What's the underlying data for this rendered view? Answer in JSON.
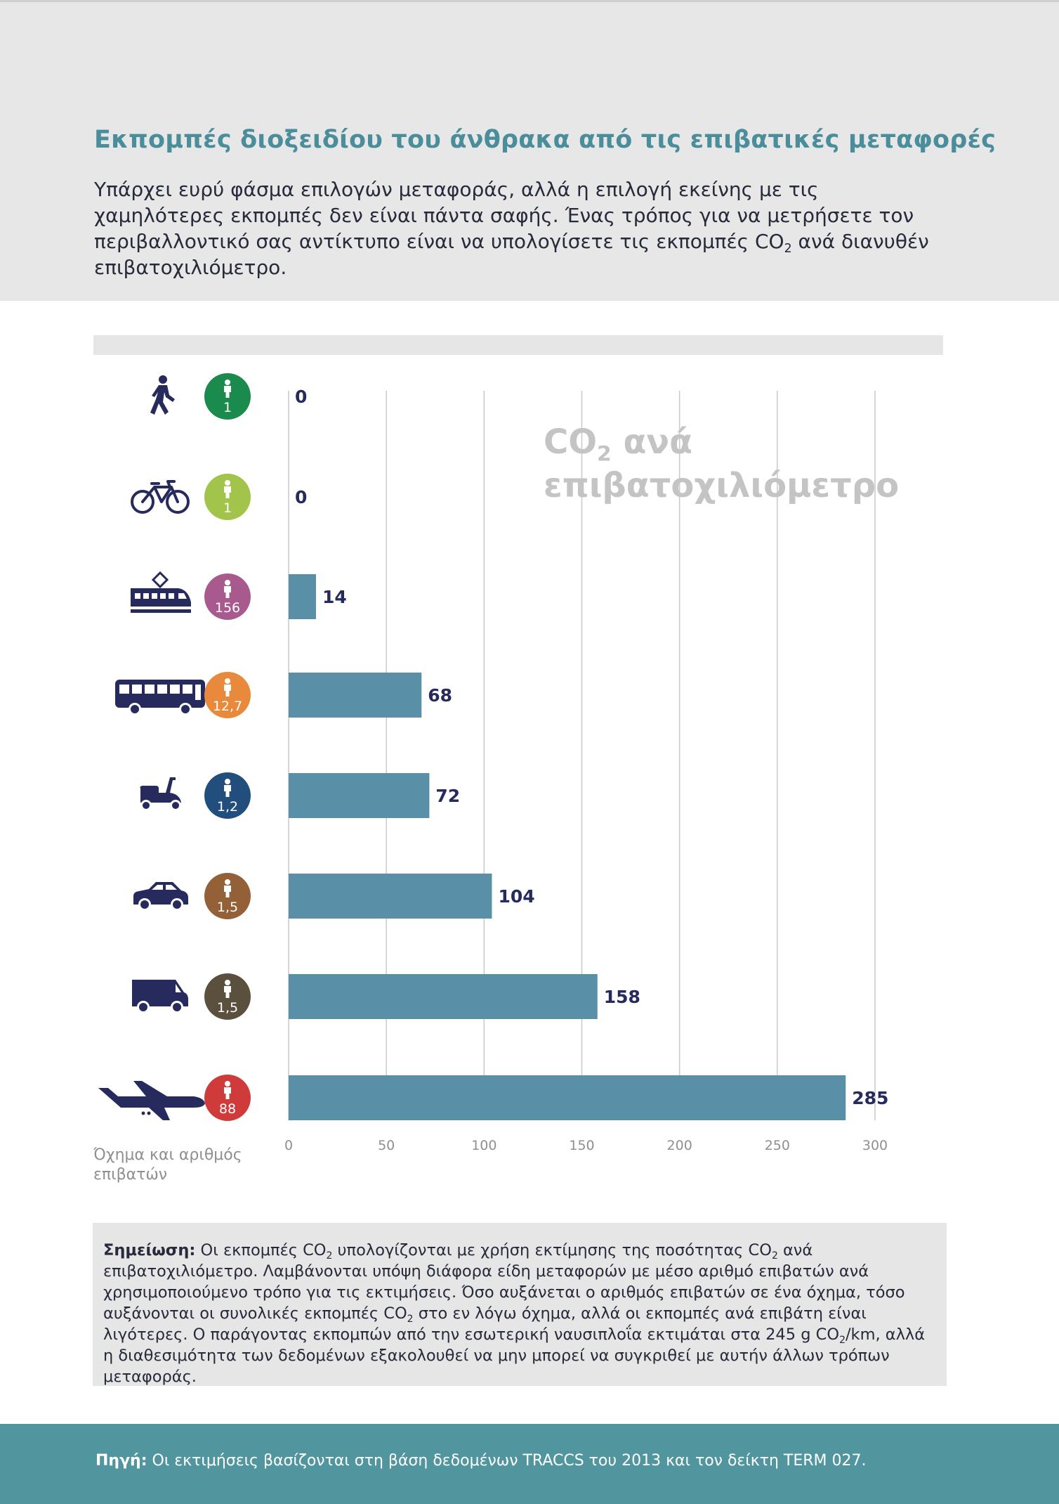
{
  "header": {
    "title": "Εκπομπές διοξειδίου του άνθρακα από τις επιβατικές μεταφορές",
    "intro_before": "Υπάρχει ευρύ φάσμα επιλογών μεταφοράς, αλλά η επιλογή εκείνης με τις χαμηλότερες εκπομπές δεν είναι πάντα σαφής. Ένας τρόπος για να μετρήσετε τον περιβαλλοντικό σας αντίκτυπο είναι να υπολογίσετε τις εκπομπές CO",
    "intro_sub": "2",
    "intro_after": " ανά διανυθέν επιβατοχιλιόμετρο."
  },
  "chart_overlay": {
    "line1_main": "CO",
    "line1_sub": "2",
    "line1_rest": " ανά",
    "line2": "επιβατοχιλιόμετρο"
  },
  "axis_caption": "Όχημα και αριθμός επιβατών",
  "chart_data": {
    "type": "bar",
    "orientation": "horizontal",
    "categories": [
      "walking",
      "bicycle",
      "train",
      "bus",
      "scooter",
      "car",
      "van",
      "airplane"
    ],
    "passengers": [
      "1",
      "1",
      "156",
      "12,7",
      "1,2",
      "1,5",
      "1,5",
      "88"
    ],
    "badge_colors": [
      "#1b8a4d",
      "#a3c44a",
      "#a85a8f",
      "#e8893c",
      "#214e7c",
      "#946037",
      "#5b4f3e",
      "#cf3b3b"
    ],
    "values": [
      0,
      0,
      14,
      68,
      72,
      104,
      158,
      285
    ],
    "value_labels": [
      "0",
      "0",
      "14",
      "68",
      "72",
      "104",
      "158",
      "285"
    ],
    "xlim": [
      0,
      300
    ],
    "xticks": [
      0,
      50,
      100,
      150,
      200,
      250,
      300
    ],
    "xtick_labels": [
      "0",
      "50",
      "100",
      "150",
      "200",
      "250",
      "300"
    ],
    "grid": true,
    "bar_color": "#5a8fa8",
    "icon_color": "#262a5c"
  },
  "note": {
    "label": "Σημείωση:",
    "p1": " Οι εκπομπές CO",
    "s1": "2",
    "p2": " υπολογίζονται με χρήση εκτίμησης της ποσότητας CO",
    "s2": "2",
    "p3": " ανά επιβατοχιλιόμετρο. Λαμβάνονται υπόψη διάφορα είδη μεταφορών με μέσο αριθμό επιβατών ανά χρησιμοποιούμενο τρόπο για τις εκτιμήσεις. Όσο αυξάνεται ο αριθμός επιβατών σε ένα όχημα, τόσο αυξάνονται οι συνολικές εκπομπές CO",
    "s3": "2",
    "p4": " στο εν λόγω όχημα, αλλά οι εκπομπές ανά επιβάτη είναι λιγότερες. Ο παράγοντας εκπομπών από την εσωτερική ναυσιπλοΐα εκτιμάται στα 245 g CO",
    "s4": "2",
    "p5": "/km, αλλά η διαθεσιμότητα των δεδομένων εξακολουθεί να μην μπορεί να συγκριθεί με αυτήν άλλων τρόπων μεταφοράς."
  },
  "source": {
    "label": "Πηγή:",
    "text": " Οι εκτιμήσεις βασίζονται στη βάση δεδομένων TRACCS του 2013 και τον δείκτη TERM 027."
  }
}
